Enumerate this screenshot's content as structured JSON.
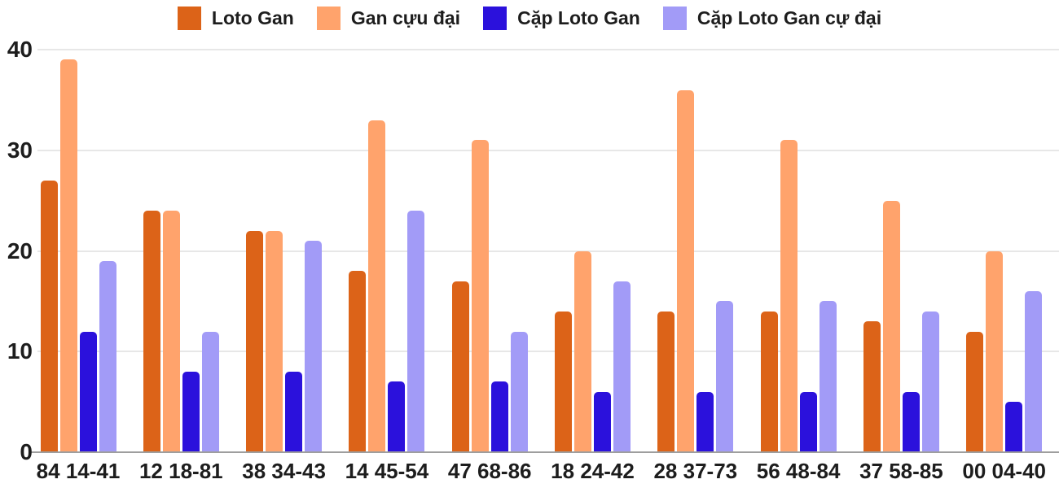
{
  "chart_data": {
    "type": "bar",
    "title": "",
    "xlabel": "",
    "ylabel": "",
    "ylim": [
      0,
      40
    ],
    "ytick_step": 10,
    "yticks": [
      0,
      10,
      20,
      30,
      40
    ],
    "grid": true,
    "legend_position": "top",
    "categories": [
      "84 14-41",
      "12 18-81",
      "38 34-43",
      "14 45-54",
      "47 68-86",
      "18 24-42",
      "28 37-73",
      "56 48-84",
      "37 58-85",
      "00 04-40"
    ],
    "series": [
      {
        "name": "Loto Gan",
        "color": "#dc6318",
        "values": [
          27,
          24,
          22,
          18,
          17,
          14,
          14,
          14,
          13,
          12
        ]
      },
      {
        "name": "Gan cựu đại",
        "color": "#ffa36c",
        "values": [
          39,
          24,
          22,
          33,
          31,
          20,
          36,
          31,
          25,
          20
        ]
      },
      {
        "name": "Cặp Loto Gan",
        "color": "#2b11dc",
        "values": [
          12,
          8,
          8,
          7,
          7,
          6,
          6,
          6,
          6,
          5
        ]
      },
      {
        "name": "Cặp Loto Gan cự đại",
        "color": "#a29bf7",
        "values": [
          19,
          12,
          21,
          24,
          12,
          17,
          15,
          15,
          14,
          16
        ]
      }
    ]
  },
  "colors": {
    "background": "#ffffff",
    "gridline": "#e7e7e7",
    "axis_line": "#9e9e9e",
    "text": "#1d1d1d"
  }
}
